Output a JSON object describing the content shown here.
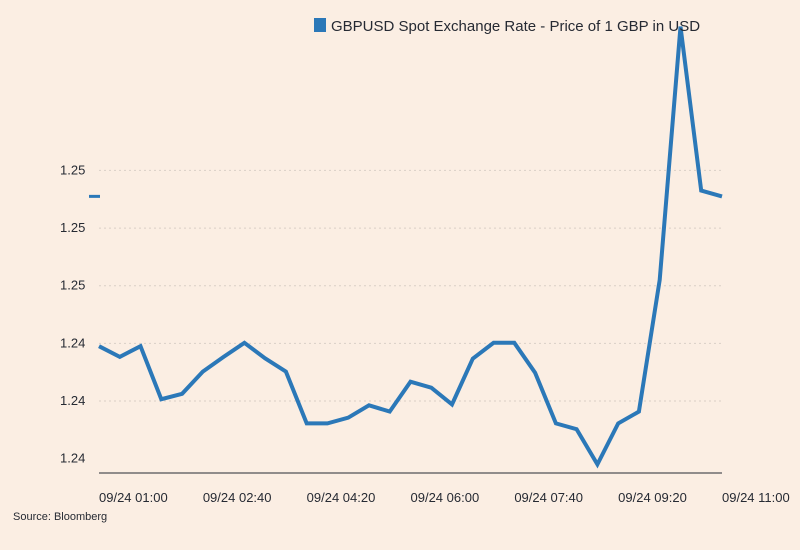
{
  "chart_data": {
    "type": "line",
    "title": "",
    "xlabel": "",
    "ylabel": "",
    "legend": {
      "position": "top-right",
      "entries": [
        "GBPUSD Spot Exchange Rate - Price of 1 GBP in USD"
      ]
    },
    "grid": true,
    "ylim": [
      1.24,
      1.2552
    ],
    "y_ticks": [
      1.2405,
      1.2425,
      1.2445,
      1.2465,
      1.2485,
      1.2505
    ],
    "y_tick_labels": [
      "1.24",
      "1.24",
      "1.24",
      "1.25",
      "1.25",
      "1.25"
    ],
    "x_ticks": [
      0,
      5,
      10,
      15,
      20,
      25,
      30
    ],
    "x_tick_labels": [
      "09/24 01:00",
      "09/24 02:40",
      "09/24 04:20",
      "09/24 06:00",
      "09/24 07:40",
      "09/24 09:20",
      "09/24 11:00"
    ],
    "series": [
      {
        "name": "GBPUSD Spot Exchange Rate - Price of 1 GBP in USD",
        "color": "#2b78b8",
        "x": [
          0,
          1,
          2,
          3,
          4,
          5,
          6,
          7,
          8,
          9,
          10,
          11,
          12,
          13,
          14,
          15,
          16,
          17,
          18,
          19,
          20,
          21,
          22,
          23,
          24,
          25,
          26,
          27,
          28,
          29,
          30
        ],
        "values": [
          1.2444,
          1.24403,
          1.2444,
          1.24256,
          1.24275,
          1.24352,
          1.24403,
          1.24452,
          1.24398,
          1.24352,
          1.24172,
          1.24172,
          1.24192,
          1.24235,
          1.24213,
          1.24317,
          1.24296,
          1.24238,
          1.24397,
          1.24452,
          1.24452,
          1.24348,
          1.24172,
          1.24152,
          1.2403,
          1.24172,
          1.24213,
          1.2467,
          1.25549,
          1.2498,
          1.2496
        ]
      }
    ],
    "current_value_marker": {
      "value": 1.2496,
      "color": "#2b78b8"
    },
    "source": "Source: Bloomberg"
  }
}
